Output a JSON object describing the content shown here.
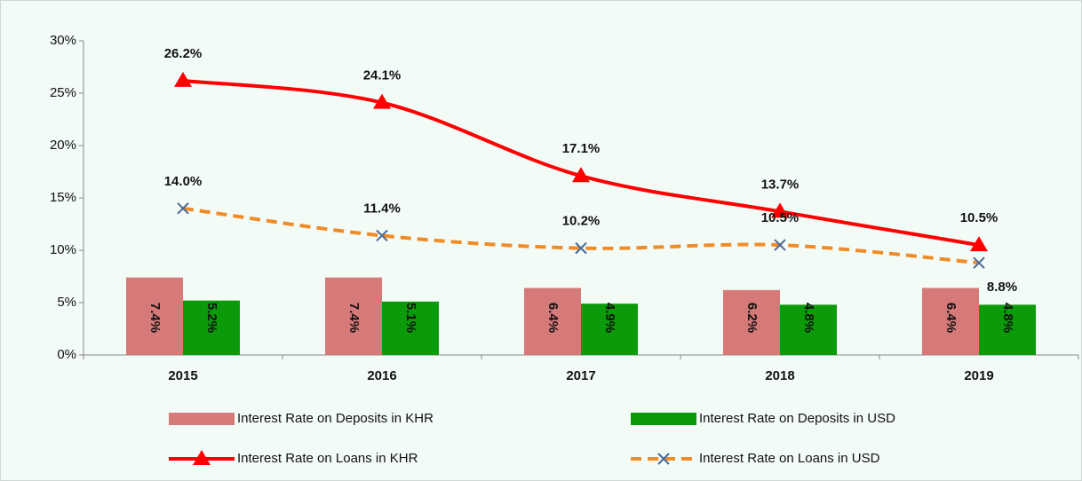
{
  "chart_data": {
    "type": "combo",
    "categories": [
      "2015",
      "2016",
      "2017",
      "2018",
      "2019"
    ],
    "ylim": [
      0,
      30
    ],
    "yticks": [
      {
        "value": 0,
        "label": "0%"
      },
      {
        "value": 5,
        "label": "5%"
      },
      {
        "value": 10,
        "label": "10%"
      },
      {
        "value": 15,
        "label": "15%"
      },
      {
        "value": 20,
        "label": "20%"
      },
      {
        "value": 25,
        "label": "25%"
      },
      {
        "value": 30,
        "label": "30%"
      }
    ],
    "legend": "bottom",
    "series": [
      {
        "name": "Interest Rate on Deposits in KHR",
        "type": "bar",
        "color": "#d57a79",
        "values": [
          7.4,
          7.4,
          6.4,
          6.2,
          6.4
        ],
        "value_labels": [
          "7.4%",
          "7.4%",
          "6.4%",
          "6.2%",
          "6.4%"
        ]
      },
      {
        "name": "Interest Rate on Deposits in USD",
        "type": "bar",
        "color": "#0a9a0a",
        "values": [
          5.2,
          5.1,
          4.9,
          4.8,
          4.8
        ],
        "value_labels": [
          "5.2%",
          "5.1%",
          "4.9%",
          "4.8%",
          "4.8%"
        ]
      },
      {
        "name": "Interest Rate on Loans in KHR",
        "type": "line",
        "color": "#ff0000",
        "marker": "triangle",
        "line_style": "solid",
        "smooth": true,
        "values": [
          26.2,
          24.1,
          17.1,
          13.7,
          10.5
        ],
        "value_labels": [
          "26.2%",
          "24.1%",
          "17.1%",
          "13.7%",
          "10.5%"
        ]
      },
      {
        "name": "Interest Rate on Loans in USD",
        "type": "line",
        "color": "#f08c28",
        "marker": "x",
        "marker_color": "#4a6a9a",
        "line_style": "dashed",
        "smooth": true,
        "values": [
          14.0,
          11.4,
          10.2,
          10.5,
          8.8
        ],
        "value_labels": [
          "14.0%",
          "11.4%",
          "10.2%",
          "10.5%",
          "8.8%"
        ]
      }
    ]
  }
}
